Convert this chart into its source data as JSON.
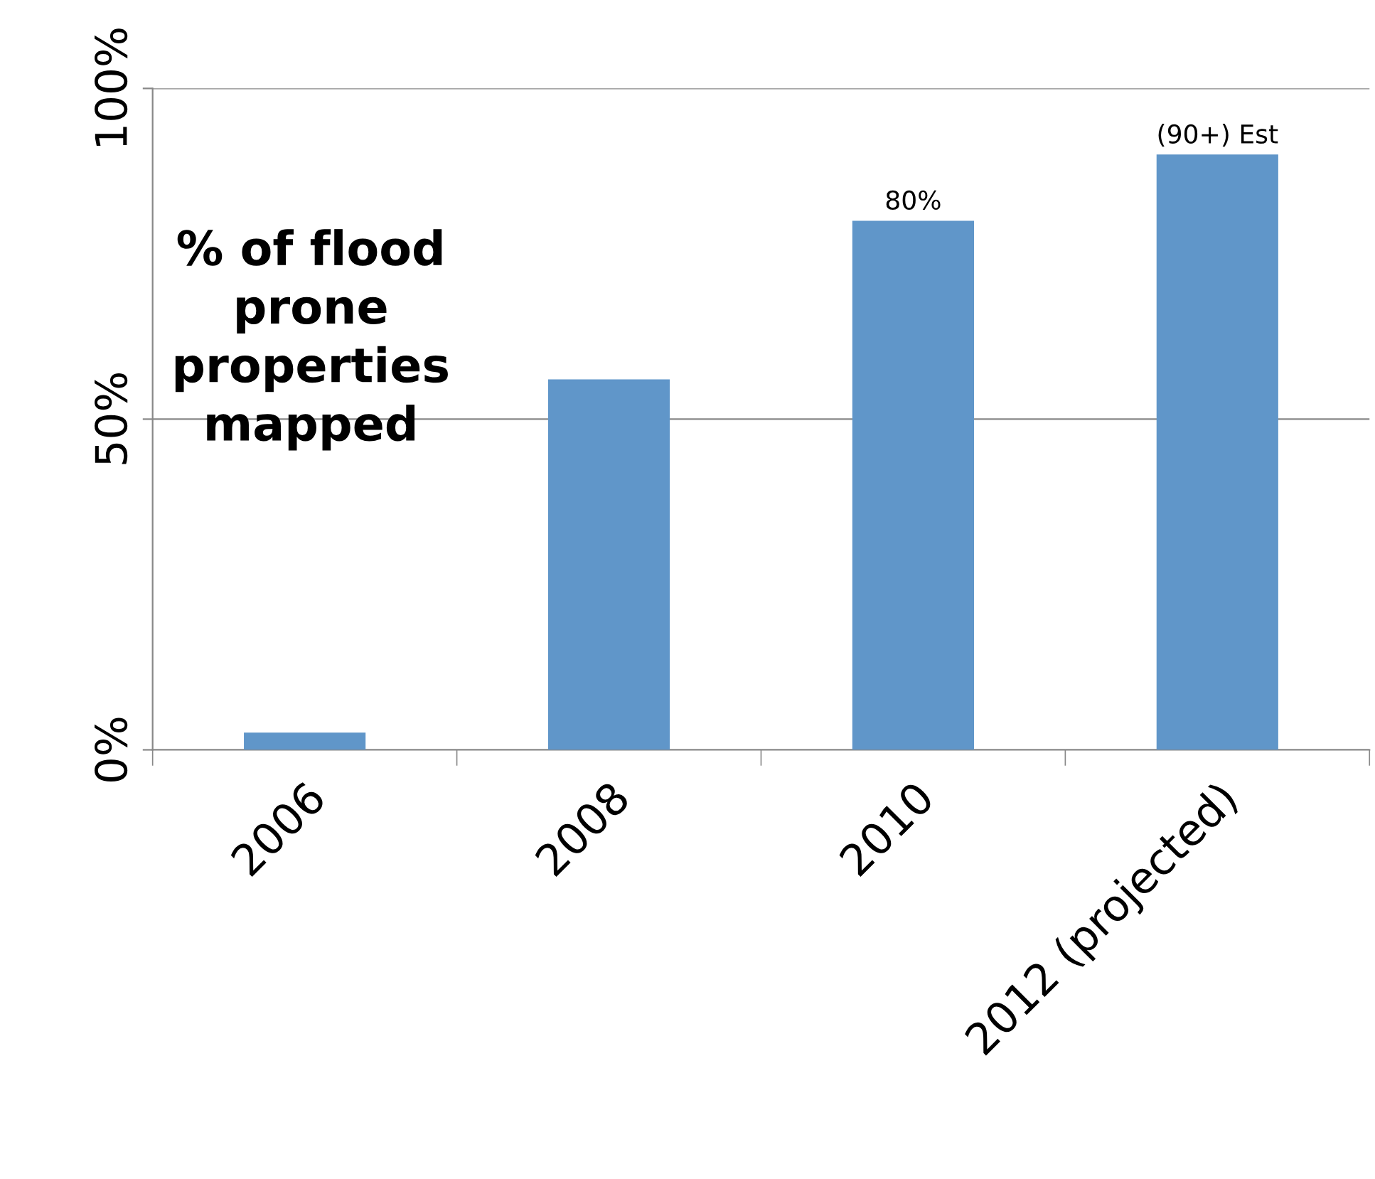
{
  "chart_data": {
    "type": "bar",
    "categories": [
      "2006",
      "2008",
      "2010",
      "2012 (projected)"
    ],
    "values": [
      2.6,
      56,
      80,
      90
    ],
    "value_labels": [
      null,
      null,
      "80%",
      "(90+) Est"
    ],
    "color": "#6096c9",
    "ylim": [
      0,
      100
    ],
    "yticks": [
      {
        "value": 0,
        "label": "0%"
      },
      {
        "value": 50,
        "label": "50%"
      },
      {
        "value": 100,
        "label": "100%"
      }
    ],
    "grid": "y",
    "annotations": [
      "% of flood\nprone\nproperties\nmapped"
    ]
  }
}
